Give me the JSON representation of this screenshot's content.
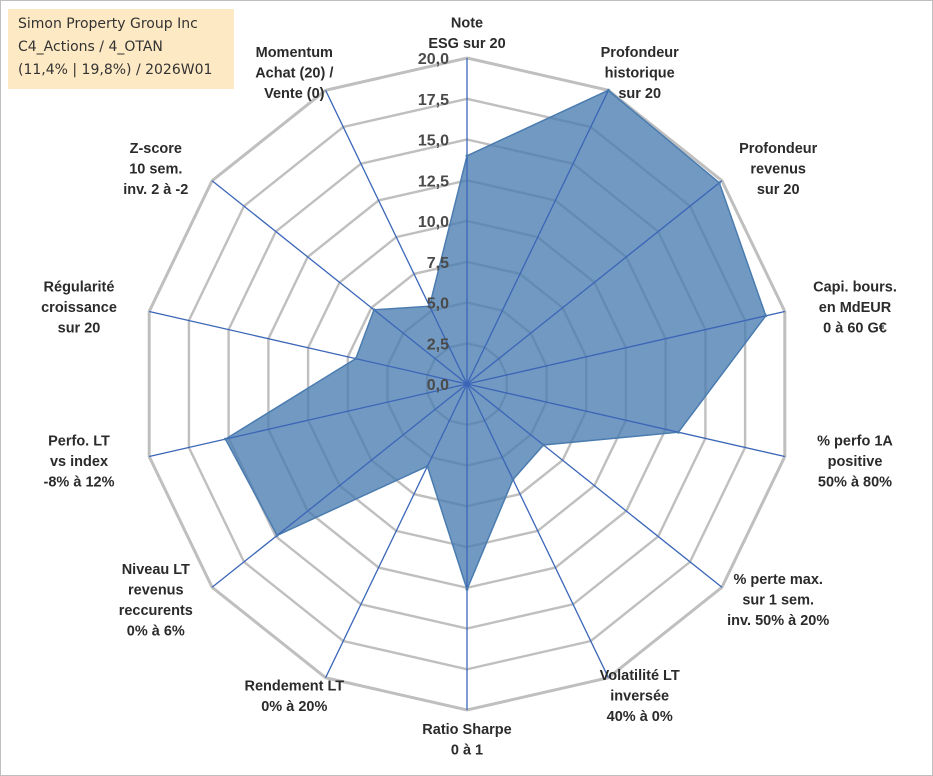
{
  "info": {
    "company": "Simon Property Group Inc",
    "path": "C4_Actions / 4_OTAN",
    "stats": "(11,4% | 19,8%) / 2026W01"
  },
  "colors": {
    "fill": "#4a7cb0",
    "axis": "#3b66b8",
    "grid": "#bfbfbf",
    "info_bg": "#fde9c4"
  },
  "chart_data": {
    "type": "radar",
    "title": "",
    "rmin": 0,
    "rmax": 20,
    "tick_values": [
      0,
      2.5,
      5,
      7.5,
      10,
      12.5,
      15,
      17.5,
      20
    ],
    "tick_labels": [
      "0,0",
      "2,5",
      "5,0",
      "7,5",
      "10,0",
      "12,5",
      "15,0",
      "17,5",
      "20,0"
    ],
    "axes": [
      {
        "label": [
          "Note",
          "ESG sur 20"
        ],
        "value": 14.0
      },
      {
        "label": [
          "Profondeur",
          "historique",
          "sur 20"
        ],
        "value": 20.0
      },
      {
        "label": [
          "Profondeur",
          "revenus",
          "sur 20"
        ],
        "value": 19.8
      },
      {
        "label": [
          "Capi. bours.",
          "en MdEUR",
          "0 à 60 G€"
        ],
        "value": 18.8
      },
      {
        "label": [
          "% perfo 1A",
          "positive",
          "50% à 80%"
        ],
        "value": 13.3
      },
      {
        "label": [
          "% perte max.",
          "sur 1 sem.",
          "inv. 50% à 20%"
        ],
        "value": 6.0
      },
      {
        "label": [
          "Volatilité LT",
          "inversée",
          "40% à 0%"
        ],
        "value": 6.5
      },
      {
        "label": [
          "Ratio Sharpe",
          "0 à 1"
        ],
        "value": 12.6
      },
      {
        "label": [
          "Rendement LT",
          "0% à 20%"
        ],
        "value": 5.6
      },
      {
        "label": [
          "Niveau LT",
          "revenus",
          "reccurents",
          "0% à 6%"
        ],
        "value": 14.9
      },
      {
        "label": [
          "Perfo. LT",
          "vs index",
          "-8% à 12%"
        ],
        "value": 15.2
      },
      {
        "label": [
          "Régularité",
          "croissance",
          "sur 20"
        ],
        "value": 7.0
      },
      {
        "label": [
          "Z-score",
          "10 sem.",
          "inv. 2 à -2"
        ],
        "value": 7.3
      },
      {
        "label": [
          "Momentum",
          "Achat (20) /",
          "Vente (0)"
        ],
        "value": 5.3
      }
    ]
  }
}
